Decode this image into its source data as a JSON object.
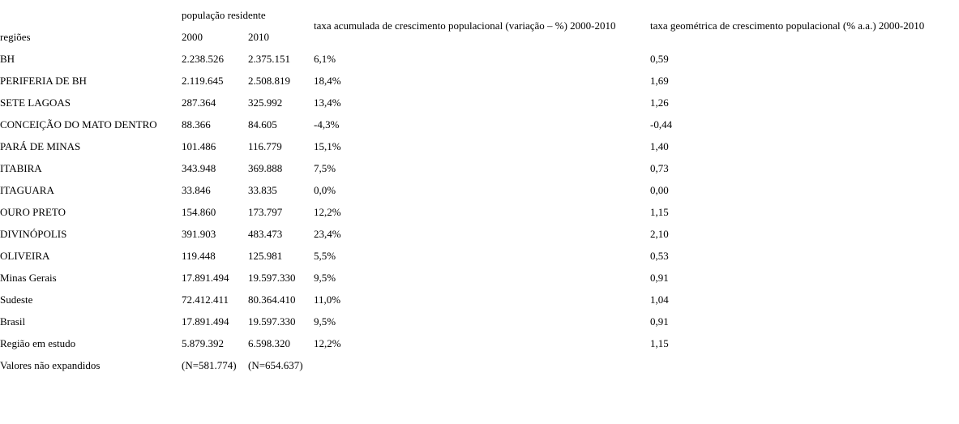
{
  "table": {
    "header": {
      "group_population": "população residente",
      "col_regions": "regiões",
      "col_2000": "2000",
      "col_2010": "2010",
      "col_accumulated": "taxa acumulada de crescimento populacional (variação – %) 2000-2010",
      "col_geometric": "taxa geométrica de crescimento populacional (% a.a.) 2000-2010"
    },
    "rows": [
      {
        "region": "BH",
        "pop2000": "2.238.526",
        "pop2010": "2.375.151",
        "accumulated": "6,1%",
        "geometric": "0,59"
      },
      {
        "region": "PERIFERIA DE BH",
        "pop2000": "2.119.645",
        "pop2010": "2.508.819",
        "accumulated": "18,4%",
        "geometric": "1,69"
      },
      {
        "region": "SETE LAGOAS",
        "pop2000": "287.364",
        "pop2010": "325.992",
        "accumulated": "13,4%",
        "geometric": "1,26"
      },
      {
        "region": "CONCEIÇÃO DO MATO DENTRO",
        "pop2000": "88.366",
        "pop2010": "84.605",
        "accumulated": "-4,3%",
        "geometric": "-0,44"
      },
      {
        "region": "PARÁ DE MINAS",
        "pop2000": "101.486",
        "pop2010": "116.779",
        "accumulated": "15,1%",
        "geometric": "1,40"
      },
      {
        "region": "ITABIRA",
        "pop2000": "343.948",
        "pop2010": "369.888",
        "accumulated": "7,5%",
        "geometric": "0,73"
      },
      {
        "region": "ITAGUARA",
        "pop2000": "33.846",
        "pop2010": "33.835",
        "accumulated": "0,0%",
        "geometric": "0,00"
      },
      {
        "region": "OURO PRETO",
        "pop2000": "154.860",
        "pop2010": "173.797",
        "accumulated": "12,2%",
        "geometric": "1,15"
      },
      {
        "region": "DIVINÓPOLIS",
        "pop2000": "391.903",
        "pop2010": "483.473",
        "accumulated": "23,4%",
        "geometric": "2,10"
      },
      {
        "region": "OLIVEIRA",
        "pop2000": "119.448",
        "pop2010": "125.981",
        "accumulated": "5,5%",
        "geometric": "0,53"
      },
      {
        "region": "Minas Gerais",
        "pop2000": "17.891.494",
        "pop2010": "19.597.330",
        "accumulated": "9,5%",
        "geometric": "0,91"
      },
      {
        "region": "Sudeste",
        "pop2000": "72.412.411",
        "pop2010": "80.364.410",
        "accumulated": "11,0%",
        "geometric": "1,04"
      },
      {
        "region": "Brasil",
        "pop2000": "17.891.494",
        "pop2010": "19.597.330",
        "accumulated": "9,5%",
        "geometric": "0,91"
      },
      {
        "region": "Região em estudo",
        "pop2000": "5.879.392",
        "pop2010": "6.598.320",
        "accumulated": "12,2%",
        "geometric": "1,15"
      },
      {
        "region": "Valores não expandidos",
        "pop2000": "(N=581.774)",
        "pop2010": "(N=654.637)",
        "accumulated": "",
        "geometric": ""
      }
    ]
  }
}
